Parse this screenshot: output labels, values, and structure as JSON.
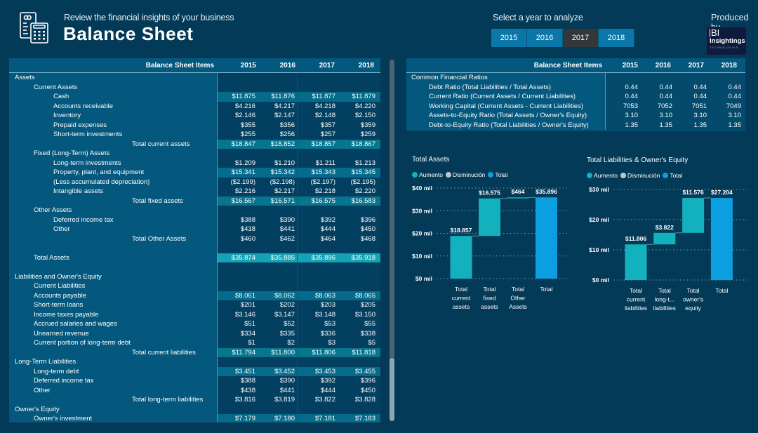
{
  "header": {
    "subtitle": "Review the financial insights of your business",
    "title": "Balance Sheet",
    "year_selector_label": "Select a year to analyze",
    "years": [
      "2015",
      "2016",
      "2017",
      "2018"
    ],
    "selected_year": "2017",
    "produced_by_label": "Produced by",
    "logo": {
      "line1": "BI",
      "line2": "Insightings",
      "line3": "TECHNOLOGIES"
    }
  },
  "colors": {
    "background": "#033a57",
    "increase": "#12b1bd",
    "decrease": "#c4c4c4",
    "total": "#0b9ee0",
    "selected_button": "#333738",
    "button": "#0b77a8"
  },
  "balance_table": {
    "header_label": "Balance Sheet Items",
    "columns": [
      "2015",
      "2016",
      "2017",
      "2018"
    ],
    "rows": [
      {
        "label": "Assets",
        "level": "0",
        "values": [
          "",
          "",
          "",
          ""
        ],
        "style": ""
      },
      {
        "label": "Current Assets",
        "level": "1",
        "values": [
          "",
          "",
          "",
          ""
        ],
        "style": ""
      },
      {
        "label": "Cash",
        "level": "2",
        "values": [
          "$11.875",
          "$11.876",
          "$11.877",
          "$11.879"
        ],
        "style": "hl"
      },
      {
        "label": "Accounts receivable",
        "level": "2",
        "values": [
          "$4.216",
          "$4.217",
          "$4.218",
          "$4.220"
        ],
        "style": ""
      },
      {
        "label": "Inventory",
        "level": "2",
        "values": [
          "$2.146",
          "$2.147",
          "$2.148",
          "$2.150"
        ],
        "style": ""
      },
      {
        "label": "Prepaid expenses",
        "level": "2",
        "values": [
          "$355",
          "$356",
          "$357",
          "$359"
        ],
        "style": ""
      },
      {
        "label": "Short-term investments",
        "level": "2",
        "values": [
          "$255",
          "$256",
          "$257",
          "$259"
        ],
        "style": ""
      },
      {
        "label": "Total current assets",
        "level": "t",
        "values": [
          "$18.847",
          "$18.852",
          "$18.857",
          "$18.867"
        ],
        "style": "tot"
      },
      {
        "label": "Fixed (Long-Term) Assets",
        "level": "1",
        "values": [
          "",
          "",
          "",
          ""
        ],
        "style": ""
      },
      {
        "label": "Long-term investments",
        "level": "2",
        "values": [
          "$1.209",
          "$1.210",
          "$1.211",
          "$1.213"
        ],
        "style": ""
      },
      {
        "label": "Property, plant, and equipment",
        "level": "2",
        "values": [
          "$15.341",
          "$15.342",
          "$15.343",
          "$15.345"
        ],
        "style": "hl"
      },
      {
        "label": "(Less accumulated depreciation)",
        "level": "2",
        "values": [
          "($2.199)",
          "($2.198)",
          "($2.197)",
          "($2.195)"
        ],
        "style": ""
      },
      {
        "label": "Intangible assets",
        "level": "2",
        "values": [
          "$2.216",
          "$2.217",
          "$2.218",
          "$2.220"
        ],
        "style": ""
      },
      {
        "label": "Total fixed assets",
        "level": "t",
        "values": [
          "$16.567",
          "$16.571",
          "$16.575",
          "$16.583"
        ],
        "style": "tot"
      },
      {
        "label": "Other Assets",
        "level": "1",
        "values": [
          "",
          "",
          "",
          ""
        ],
        "style": ""
      },
      {
        "label": "Deferred income tax",
        "level": "2",
        "values": [
          "$388",
          "$390",
          "$392",
          "$396"
        ],
        "style": ""
      },
      {
        "label": "Other",
        "level": "2",
        "values": [
          "$438",
          "$441",
          "$444",
          "$450"
        ],
        "style": ""
      },
      {
        "label": "Total Other Assets",
        "level": "t",
        "values": [
          "$460",
          "$462",
          "$464",
          "$468"
        ],
        "style": ""
      },
      {
        "label": "",
        "level": "0",
        "values": [
          "",
          "",
          "",
          ""
        ],
        "style": ""
      },
      {
        "label": "Total Assets",
        "level": "1",
        "values": [
          "$35.874",
          "$35.885",
          "$35.896",
          "$35.918"
        ],
        "style": "grand"
      },
      {
        "label": "",
        "level": "0",
        "values": [
          "",
          "",
          "",
          ""
        ],
        "style": ""
      },
      {
        "label": "Liabilities and Owner's Equity",
        "level": "0",
        "values": [
          "",
          "",
          "",
          ""
        ],
        "style": ""
      },
      {
        "label": "Current Liabilities",
        "level": "1",
        "values": [
          "",
          "",
          "",
          ""
        ],
        "style": ""
      },
      {
        "label": "Accounts payable",
        "level": "1",
        "values": [
          "$8.061",
          "$8.062",
          "$8.063",
          "$8.065"
        ],
        "style": "hl"
      },
      {
        "label": "Short-term loans",
        "level": "1",
        "values": [
          "$201",
          "$202",
          "$203",
          "$205"
        ],
        "style": ""
      },
      {
        "label": "Income taxes payable",
        "level": "1",
        "values": [
          "$3.146",
          "$3.147",
          "$3.148",
          "$3.150"
        ],
        "style": ""
      },
      {
        "label": "Accrued salaries and wages",
        "level": "1",
        "values": [
          "$51",
          "$52",
          "$53",
          "$55"
        ],
        "style": ""
      },
      {
        "label": "Unearned revenue",
        "level": "1",
        "values": [
          "$334",
          "$335",
          "$336",
          "$338"
        ],
        "style": ""
      },
      {
        "label": "Current portion of long-term debt",
        "level": "1",
        "values": [
          "$1",
          "$2",
          "$3",
          "$5"
        ],
        "style": ""
      },
      {
        "label": "Total current liabilities",
        "level": "t",
        "values": [
          "$11.794",
          "$11.800",
          "$11.806",
          "$11.818"
        ],
        "style": "tot"
      },
      {
        "label": "Long-Term Liabilities",
        "level": "0",
        "values": [
          "",
          "",
          "",
          ""
        ],
        "style": ""
      },
      {
        "label": "Long-term debt",
        "level": "1",
        "values": [
          "$3.451",
          "$3.452",
          "$3.453",
          "$3.455"
        ],
        "style": "hl"
      },
      {
        "label": "Deferred income tax",
        "level": "1",
        "values": [
          "$388",
          "$390",
          "$392",
          "$396"
        ],
        "style": ""
      },
      {
        "label": "Other",
        "level": "1",
        "values": [
          "$438",
          "$441",
          "$444",
          "$450"
        ],
        "style": ""
      },
      {
        "label": "Total long-term liabilities",
        "level": "t",
        "values": [
          "$3.816",
          "$3.819",
          "$3.822",
          "$3.828"
        ],
        "style": ""
      },
      {
        "label": "Owner's Equity",
        "level": "0",
        "values": [
          "",
          "",
          "",
          ""
        ],
        "style": ""
      },
      {
        "label": "Owner's investment",
        "level": "1",
        "values": [
          "$7.179",
          "$7.180",
          "$7.181",
          "$7.183"
        ],
        "style": "hl"
      }
    ]
  },
  "ratio_table": {
    "header_label": "Balance Sheet Items",
    "columns": [
      "2015",
      "2016",
      "2017",
      "2018"
    ],
    "rows": [
      {
        "label": "Common Financial Ratios",
        "level": "0",
        "values": [
          "",
          "",
          "",
          ""
        ]
      },
      {
        "label": "Debt Ratio (Total Liabilities / Total Assets)",
        "level": "1",
        "values": [
          "0.44",
          "0.44",
          "0.44",
          "0.44"
        ]
      },
      {
        "label": "Current Ratio (Current Assets / Current Liabilities)",
        "level": "1",
        "values": [
          "0.44",
          "0.44",
          "0.44",
          "0.44"
        ]
      },
      {
        "label": "Working Capital (Current Assets - Current Liabilities)",
        "level": "1",
        "values": [
          "7053",
          "7052",
          "7051",
          "7049"
        ]
      },
      {
        "label": "Assets-to-Equity Ratio (Total Assets / Owner's Equity)",
        "level": "1",
        "values": [
          "3.10",
          "3.10",
          "3.10",
          "3.10"
        ]
      },
      {
        "label": "Debt-to-Equity Ratio (Total Liabilities / Owner's Equity)",
        "level": "1",
        "values": [
          "1.35",
          "1.35",
          "1.35",
          "1.35"
        ]
      }
    ]
  },
  "chart_data": [
    {
      "type": "waterfall",
      "title": "Total Assets",
      "legend": [
        "Aumento",
        "Disminución",
        "Total"
      ],
      "legend_position": "top-left",
      "categories": [
        [
          "Total",
          "current",
          "assets"
        ],
        [
          "Total",
          "fixed",
          "assets"
        ],
        [
          "Total",
          "Other",
          "Assets"
        ],
        [
          "Total"
        ]
      ],
      "values": [
        18857,
        16575,
        464,
        35896
      ],
      "kinds": [
        "increase",
        "increase",
        "increase",
        "total"
      ],
      "data_labels": [
        "$18.857",
        "$16.575",
        "$464",
        "$35.896"
      ],
      "yticks": [
        0,
        10000,
        20000,
        30000,
        40000
      ],
      "ytick_labels": [
        "$0 mil",
        "$10 mil",
        "$20 mil",
        "$30 mil",
        "$40 mil"
      ],
      "ylim": [
        0,
        40000
      ],
      "grid": true
    },
    {
      "type": "waterfall",
      "title": "Total Liabilities & Owner's Equity",
      "legend": [
        "Aumento",
        "Disminución",
        "Total"
      ],
      "legend_position": "top-left",
      "categories": [
        [
          "Total",
          "current",
          "liabilities"
        ],
        [
          "Total",
          "long-t...",
          "liabilities"
        ],
        [
          "Total",
          "owner's",
          "equity"
        ],
        [
          "Total"
        ]
      ],
      "values": [
        11806,
        3822,
        11576,
        27204
      ],
      "kinds": [
        "increase",
        "increase",
        "increase",
        "total"
      ],
      "data_labels": [
        "$11.806",
        "$3.822",
        "$11.576",
        "$27.204"
      ],
      "yticks": [
        0,
        10000,
        20000,
        30000
      ],
      "ytick_labels": [
        "$0 mil",
        "$10 mil",
        "$20 mil",
        "$30 mil"
      ],
      "ylim": [
        0,
        30000
      ],
      "grid": true
    }
  ]
}
